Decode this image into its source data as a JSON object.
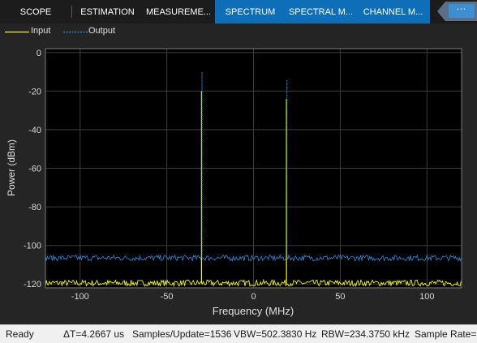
{
  "tabs": [
    {
      "label": "SCOPE",
      "selected": false
    },
    {
      "label": "ESTIMATION",
      "selected": false
    },
    {
      "label": "MEASUREME...",
      "selected": false
    },
    {
      "label": "SPECTRUM",
      "selected": true
    },
    {
      "label": "SPECTRAL M...",
      "selected": true
    },
    {
      "label": "CHANNEL M...",
      "selected": true
    }
  ],
  "more_tabs_label": "⋯",
  "legend": [
    {
      "label": "Input",
      "color": "#f2f228",
      "style": "solid"
    },
    {
      "label": "Output",
      "color": "#2e8de0",
      "style": "dotted"
    }
  ],
  "chart_data": {
    "type": "line",
    "xlabel": "Frequency (MHz)",
    "ylabel": "Power (dBm)",
    "xlim": [
      -120,
      120
    ],
    "ylim": [
      -122,
      2
    ],
    "xticks": [
      -100,
      -50,
      0,
      50,
      100
    ],
    "yticks": [
      0,
      -20,
      -40,
      -60,
      -80,
      -100,
      -120
    ],
    "grid": true,
    "background": "#000000",
    "series": [
      {
        "name": "Input",
        "color": "#f2f228",
        "noise_floor": -119.5,
        "peaks": [
          {
            "x": -30,
            "y": -20
          },
          {
            "x": 19,
            "y": -24
          }
        ]
      },
      {
        "name": "Output",
        "color": "#2e8de0",
        "noise_floor": -106.5,
        "peaks": [
          {
            "x": -30,
            "y": -10
          },
          {
            "x": 19,
            "y": -14
          }
        ]
      }
    ]
  },
  "status": {
    "ready": "Ready",
    "delta_t": "ΔT=4.2667 us",
    "samples_per_update": "Samples/Update=1536",
    "vbw": "VBW=502.3830 Hz",
    "rbw": "RBW=234.3750 kHz",
    "sample_rate": "Sample Rate="
  }
}
